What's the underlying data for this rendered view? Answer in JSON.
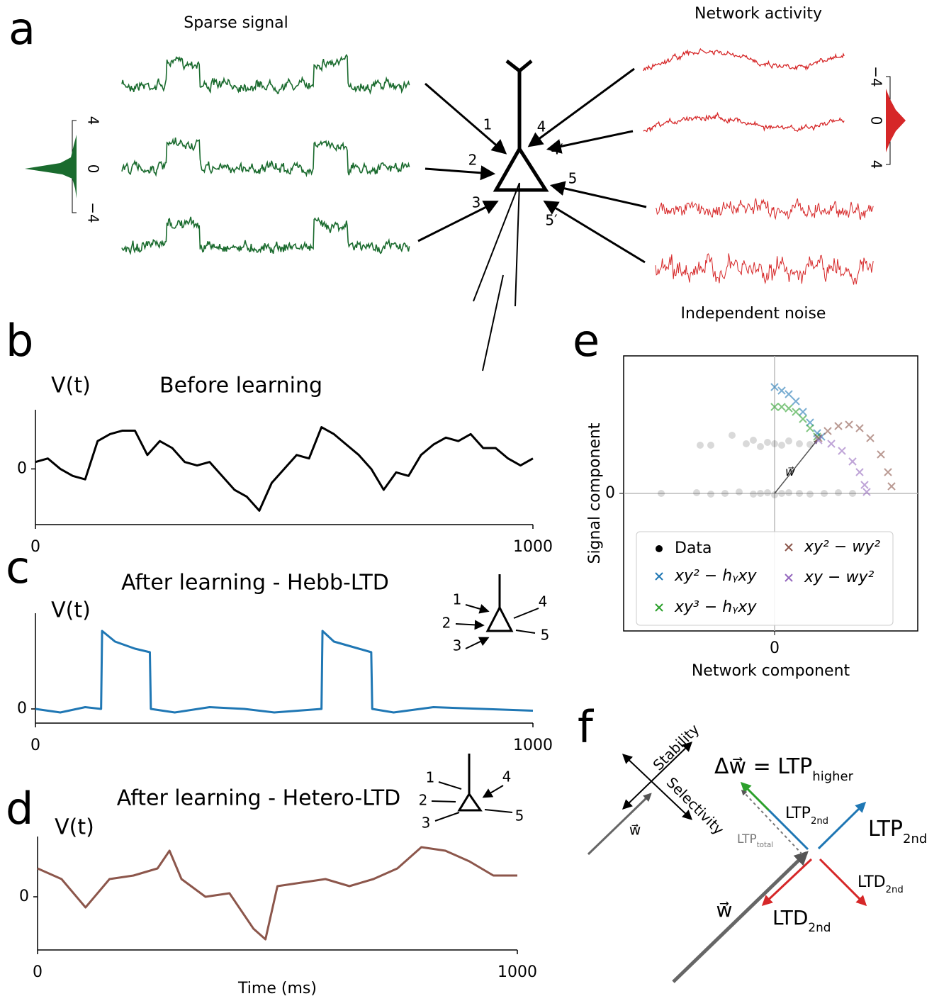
{
  "panel_labels": [
    "a",
    "b",
    "c",
    "d",
    "e",
    "f"
  ],
  "panel_a": {
    "signal_title": "Sparse signal",
    "network_title": "Network activity",
    "noise_title": "Independent noise",
    "synapses": [
      "1",
      "2",
      "3",
      "4",
      "4′",
      "5",
      "5′"
    ],
    "signal_hist_ticks": [
      "4",
      "0",
      "−4"
    ],
    "network_hist_ticks": [
      "−4",
      "0",
      "4"
    ]
  },
  "chart_data": [
    {
      "panel": "b",
      "type": "line",
      "title": "Before learning",
      "ylabel": "V(t)",
      "x": [
        0,
        25,
        50,
        75,
        100,
        125,
        150,
        175,
        200,
        225,
        250,
        275,
        300,
        325,
        350,
        375,
        400,
        425,
        450,
        475,
        500,
        525,
        550,
        575,
        600,
        625,
        650,
        675,
        700,
        725,
        750,
        775,
        800,
        825,
        850,
        875,
        900,
        925,
        950,
        975,
        1000
      ],
      "series": [
        {
          "color": "#000000",
          "values": [
            0.2,
            0.3,
            0.0,
            -0.2,
            -0.3,
            0.8,
            1.0,
            1.1,
            1.1,
            0.4,
            0.8,
            0.6,
            0.2,
            0.1,
            0.2,
            -0.2,
            -0.6,
            -0.8,
            -1.2,
            -0.4,
            0.0,
            0.4,
            0.3,
            1.2,
            1.0,
            0.7,
            0.4,
            0.0,
            -0.6,
            -0.1,
            -0.2,
            0.4,
            0.7,
            0.9,
            0.8,
            1.0,
            0.6,
            0.6,
            0.3,
            0.1,
            0.3
          ]
        }
      ],
      "xlim": [
        0,
        1000
      ],
      "xticks": [
        0,
        1000
      ],
      "ylim": [
        -1.6,
        1.7
      ],
      "yticks": [
        0
      ]
    },
    {
      "panel": "c",
      "type": "line",
      "title": "After learning - Hebb-LTD",
      "ylabel": "V(t)",
      "x": [
        0,
        50,
        100,
        132,
        134,
        160,
        200,
        230,
        232,
        280,
        350,
        420,
        480,
        575,
        577,
        600,
        650,
        675,
        677,
        720,
        800,
        900,
        1000
      ],
      "series": [
        {
          "color": "#1f77b4",
          "values": [
            0,
            -0.1,
            0.05,
            0,
            2.2,
            1.9,
            1.7,
            1.6,
            0,
            -0.1,
            0.05,
            0,
            -0.1,
            0,
            2.2,
            1.9,
            1.7,
            1.6,
            0,
            -0.1,
            0.05,
            0,
            -0.05
          ]
        }
      ],
      "xlim": [
        0,
        1000
      ],
      "xticks": [
        0,
        1000
      ],
      "ylim": [
        -0.4,
        2.7
      ],
      "yticks": [
        0
      ],
      "inset_labels": [
        "1",
        "2",
        "3",
        "4",
        "5"
      ]
    },
    {
      "panel": "d",
      "type": "line",
      "title": "After learning - Hetero-LTD",
      "ylabel": "V(t)",
      "xlabel": "Time (ms)",
      "x": [
        0,
        50,
        100,
        150,
        200,
        250,
        275,
        300,
        350,
        400,
        450,
        475,
        500,
        550,
        600,
        650,
        700,
        750,
        800,
        850,
        900,
        950,
        1000
      ],
      "series": [
        {
          "color": "#8c564b",
          "values": [
            0.8,
            0.5,
            -0.3,
            0.5,
            0.6,
            0.8,
            1.3,
            0.5,
            0,
            0.1,
            -0.9,
            -1.2,
            0.3,
            0.4,
            0.5,
            0.3,
            0.5,
            0.8,
            1.4,
            1.3,
            1.0,
            0.6,
            0.6
          ]
        }
      ],
      "xlim": [
        0,
        1000
      ],
      "xticks": [
        0,
        1000
      ],
      "ylim": [
        -1.5,
        1.7
      ],
      "yticks": [
        0
      ],
      "inset_labels": [
        "1",
        "2",
        "3",
        "4",
        "5"
      ]
    },
    {
      "panel": "e",
      "type": "scatter",
      "xlabel": "Network component",
      "ylabel": "Signal component",
      "vector_label": "w⃗",
      "xlim": [
        -2.13,
        2.02
      ],
      "ylim": [
        -1.94,
        1.94
      ],
      "xticks": [
        0
      ],
      "yticks": [
        0
      ],
      "grid": true,
      "series": [
        {
          "name": "Data",
          "color": "#000000",
          "x": [
            -1.6,
            -1.1,
            -0.9,
            -0.7,
            -0.5,
            -0.3,
            -0.2,
            -0.1,
            0,
            0.1,
            0.2,
            0.35,
            0.5,
            0.7,
            0.9,
            1.1,
            -1.05,
            -0.9,
            -0.6,
            -0.4,
            -0.3,
            -0.2,
            -0.1,
            0,
            0.1,
            0.2,
            0.35,
            0.5
          ],
          "values": [
            0,
            0.01,
            -0.01,
            0,
            0.02,
            -0.01,
            0,
            0.01,
            -0.02,
            0,
            0.01,
            0,
            -0.01,
            0,
            0.01,
            0,
            0.68,
            0.68,
            0.82,
            0.7,
            0.75,
            0.66,
            0.72,
            0.7,
            0.68,
            0.74,
            0.7,
            0.69
          ]
        },
        {
          "name": "xy² − hᵧxy",
          "color": "#1f77b4",
          "x": [
            0,
            0.1,
            0.2,
            0.3,
            0.4,
            0.5,
            0.6,
            0.66
          ],
          "values": [
            1.5,
            1.45,
            1.4,
            1.3,
            1.15,
            1.0,
            0.85,
            0.8
          ]
        },
        {
          "name": "xy³ − hᵧxy",
          "color": "#2ca02c",
          "x": [
            0,
            0.1,
            0.2,
            0.3,
            0.4,
            0.5,
            0.6
          ],
          "values": [
            1.22,
            1.22,
            1.2,
            1.15,
            1.05,
            0.92,
            0.8
          ]
        },
        {
          "name": "xy² − wy²",
          "color": "#8c564b",
          "x": [
            0.62,
            0.75,
            0.9,
            1.05,
            1.2,
            1.35,
            1.5,
            1.6,
            1.65
          ],
          "values": [
            0.78,
            0.88,
            0.95,
            0.97,
            0.92,
            0.78,
            0.55,
            0.3,
            0.1
          ]
        },
        {
          "name": "xy − wy²",
          "color": "#9467bd",
          "x": [
            0.62,
            0.8,
            0.95,
            1.1,
            1.2,
            1.27,
            1.3
          ],
          "values": [
            0.75,
            0.7,
            0.6,
            0.45,
            0.3,
            0.12,
            0.02
          ]
        }
      ]
    }
  ],
  "panel_f": {
    "stability": "Stability",
    "selectivity": "Selectivity",
    "w_small": "w⃗",
    "w_large": "w⃗",
    "delta": {
      "main": "Δw⃗ = LTP",
      "sub": "higher"
    },
    "ltp_2nd_left": {
      "main": "LTP",
      "sub": "2nd"
    },
    "ltp_2nd_right": {
      "main": "LTP",
      "sub": "2nd"
    },
    "ltp_total": {
      "main": "LTP",
      "sub": "total"
    },
    "ltd_2nd_right": {
      "main": "LTD",
      "sub": "2nd"
    },
    "ltd_2nd_bottom": {
      "main": "LTD",
      "sub": "2nd"
    }
  }
}
